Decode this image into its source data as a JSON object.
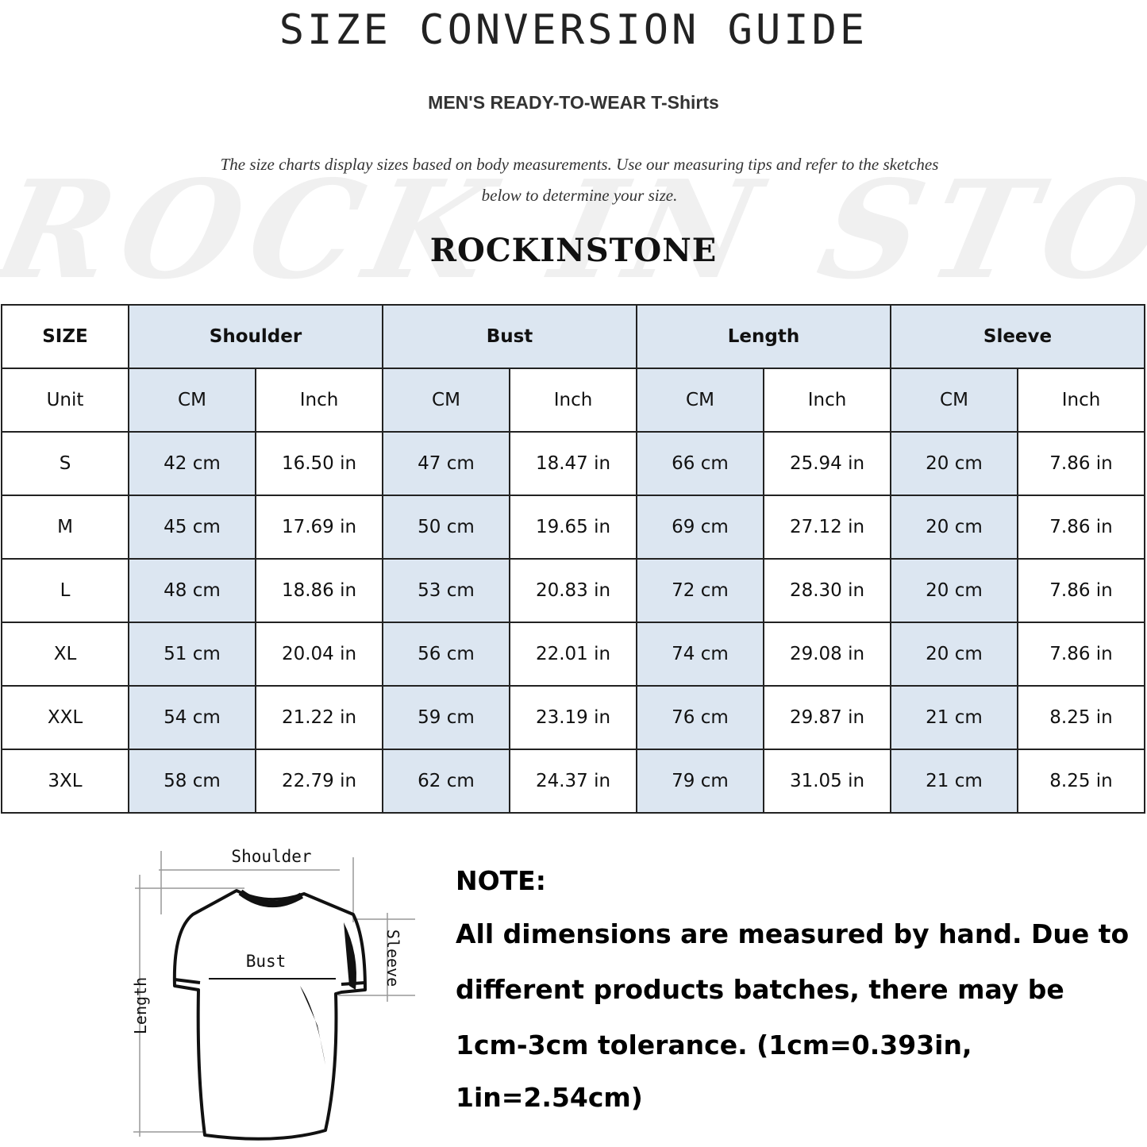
{
  "title": "SIZE CONVERSION GUIDE",
  "subtitle": "MEN'S READY-TO-WEAR T-Shirts",
  "description_line1": "The size charts display sizes based on body measurements. Use our measuring tips and refer to the sketches",
  "description_line2": "below to determine your size.",
  "watermark": "ROCK IN STONE",
  "brand": "ROCKINSTONE",
  "colors": {
    "header_fill": "#dce6f1",
    "border": "#222222"
  },
  "table": {
    "size_header": "SIZE",
    "groups": [
      "Shoulder",
      "Bust",
      "Length",
      "Sleeve"
    ],
    "unit_label": "Unit",
    "units": [
      "CM",
      "Inch",
      "CM",
      "Inch",
      "CM",
      "Inch",
      "CM",
      "Inch"
    ],
    "rows": [
      {
        "size": "S",
        "values": [
          "42 cm",
          "16.50 in",
          "47 cm",
          "18.47  in",
          "66 cm",
          "25.94  in",
          "20 cm",
          "7.86  in"
        ]
      },
      {
        "size": "M",
        "values": [
          "45 cm",
          "17.69  in",
          "50 cm",
          "19.65  in",
          "69 cm",
          "27.12  in",
          "20 cm",
          "7.86  in"
        ]
      },
      {
        "size": "L",
        "values": [
          "48 cm",
          "18.86  in",
          "53 cm",
          "20.83  in",
          "72 cm",
          "28.30  in",
          "20 cm",
          "7.86  in"
        ]
      },
      {
        "size": "XL",
        "values": [
          "51 cm",
          "20.04  in",
          "56 cm",
          "22.01  in",
          "74 cm",
          "29.08  in",
          "20 cm",
          "7.86  in"
        ]
      },
      {
        "size": "XXL",
        "values": [
          "54 cm",
          "21.22  in",
          "59 cm",
          "23.19  in",
          "76 cm",
          "29.87  in",
          "21 cm",
          "8.25  in"
        ]
      },
      {
        "size": "3XL",
        "values": [
          "58 cm",
          "22.79  in",
          "62 cm",
          "24.37  in",
          "79 cm",
          "31.05  in",
          "21 cm",
          "8.25  in"
        ]
      }
    ]
  },
  "sketch": {
    "shoulder": "Shoulder",
    "bust": "Bust",
    "sleeve": "Sleeve",
    "length": "Length"
  },
  "note": {
    "heading": "NOTE:",
    "line1": "All dimensions are measured by hand. Due to",
    "line2": "different products batches, there may be",
    "line3": "1cm-3cm tolerance. (1cm=0.393in, 1in=2.54cm)"
  }
}
